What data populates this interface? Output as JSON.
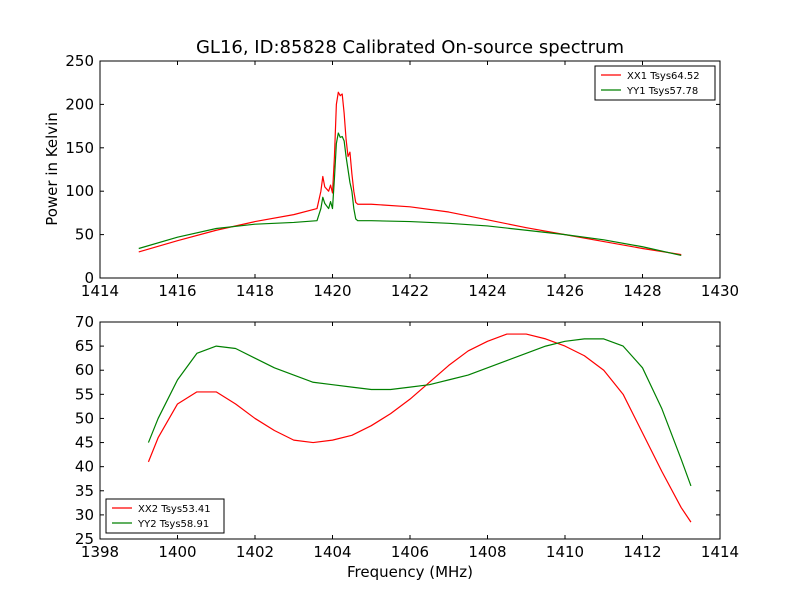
{
  "figure": {
    "title": "GL16, ID:85828 Calibrated On-source spectrum",
    "ylabel": "Power in Kelvin",
    "xlabel": "Frequency (MHz)"
  },
  "chart_data": [
    {
      "type": "line",
      "title": "GL16, ID:85828 Calibrated On-source spectrum",
      "xlabel": "",
      "ylabel": "Power in Kelvin",
      "xlim": [
        1414,
        1430
      ],
      "ylim": [
        0,
        250
      ],
      "xticks": [
        "1414",
        "1416",
        "1418",
        "1420",
        "1422",
        "1424",
        "1426",
        "1428",
        "1430"
      ],
      "yticks": [
        "0",
        "50",
        "100",
        "150",
        "200",
        "250"
      ],
      "legend_position": "top-right",
      "series": [
        {
          "name": "XX1 Tsys64.52",
          "color": "#ff0000",
          "x": [
            1415.0,
            1416.0,
            1417.0,
            1418.0,
            1419.0,
            1419.6,
            1419.7,
            1419.75,
            1419.8,
            1419.9,
            1419.95,
            1420.0,
            1420.05,
            1420.1,
            1420.15,
            1420.2,
            1420.25,
            1420.3,
            1420.35,
            1420.4,
            1420.45,
            1420.5,
            1420.55,
            1420.6,
            1420.65,
            1420.7,
            1421.0,
            1422.0,
            1423.0,
            1424.0,
            1425.0,
            1426.0,
            1427.0,
            1428.0,
            1429.0
          ],
          "y": [
            30,
            43,
            55,
            65,
            73,
            80,
            100,
            117,
            105,
            100,
            107,
            98,
            140,
            200,
            214,
            210,
            212,
            190,
            160,
            140,
            145,
            120,
            100,
            87,
            85,
            85,
            85,
            82,
            76,
            67,
            58,
            50,
            42,
            34,
            27
          ]
        },
        {
          "name": "YY1 Tsys57.78",
          "color": "#008000",
          "x": [
            1415.0,
            1416.0,
            1417.0,
            1418.0,
            1419.0,
            1419.6,
            1419.7,
            1419.75,
            1419.8,
            1419.9,
            1419.95,
            1420.0,
            1420.05,
            1420.1,
            1420.15,
            1420.2,
            1420.25,
            1420.3,
            1420.35,
            1420.4,
            1420.45,
            1420.5,
            1420.55,
            1420.6,
            1420.65,
            1420.7,
            1421.0,
            1422.0,
            1423.0,
            1424.0,
            1425.0,
            1426.0,
            1427.0,
            1428.0,
            1429.0
          ],
          "y": [
            34,
            47,
            57,
            62,
            64,
            66,
            80,
            93,
            86,
            80,
            88,
            80,
            115,
            155,
            167,
            162,
            163,
            158,
            140,
            125,
            110,
            100,
            80,
            68,
            66,
            66,
            66,
            65,
            63,
            60,
            55,
            50,
            44,
            36,
            26
          ]
        }
      ]
    },
    {
      "type": "line",
      "title": "",
      "xlabel": "Frequency (MHz)",
      "ylabel": "",
      "xlim": [
        1398,
        1414
      ],
      "ylim": [
        25,
        70
      ],
      "xticks": [
        "1398",
        "1400",
        "1402",
        "1404",
        "1406",
        "1408",
        "1410",
        "1412",
        "1414"
      ],
      "yticks": [
        "25",
        "30",
        "35",
        "40",
        "45",
        "50",
        "55",
        "60",
        "65",
        "70"
      ],
      "legend_position": "bottom-left",
      "series": [
        {
          "name": "XX2 Tsys53.41",
          "color": "#ff0000",
          "x": [
            1399.25,
            1399.5,
            1400.0,
            1400.5,
            1401.0,
            1401.5,
            1402.0,
            1402.5,
            1403.0,
            1403.5,
            1404.0,
            1404.5,
            1405.0,
            1405.5,
            1406.0,
            1406.5,
            1407.0,
            1407.5,
            1408.0,
            1408.5,
            1409.0,
            1409.5,
            1410.0,
            1410.5,
            1411.0,
            1411.5,
            1412.0,
            1412.5,
            1413.0,
            1413.25
          ],
          "y": [
            41,
            46,
            53,
            55.5,
            55.5,
            53,
            50,
            47.5,
            45.5,
            45,
            45.5,
            46.5,
            48.5,
            51,
            54,
            57.5,
            61,
            64,
            66,
            67.5,
            67.5,
            66.5,
            65,
            63,
            60,
            55,
            47,
            39,
            31.5,
            28.5
          ]
        },
        {
          "name": "YY2 Tsys58.91",
          "color": "#008000",
          "x": [
            1399.25,
            1399.5,
            1400.0,
            1400.5,
            1401.0,
            1401.5,
            1402.0,
            1402.5,
            1403.0,
            1403.5,
            1404.0,
            1404.5,
            1405.0,
            1405.5,
            1406.0,
            1406.5,
            1407.0,
            1407.5,
            1408.0,
            1408.5,
            1409.0,
            1409.5,
            1410.0,
            1410.5,
            1411.0,
            1411.5,
            1412.0,
            1412.5,
            1413.0,
            1413.25
          ],
          "y": [
            45,
            50,
            58,
            63.5,
            65,
            64.5,
            62.5,
            60.5,
            59,
            57.5,
            57,
            56.5,
            56,
            56,
            56.5,
            57,
            58,
            59,
            60.5,
            62,
            63.5,
            65,
            66,
            66.5,
            66.5,
            65,
            60.5,
            52,
            41.5,
            36
          ]
        }
      ]
    }
  ]
}
